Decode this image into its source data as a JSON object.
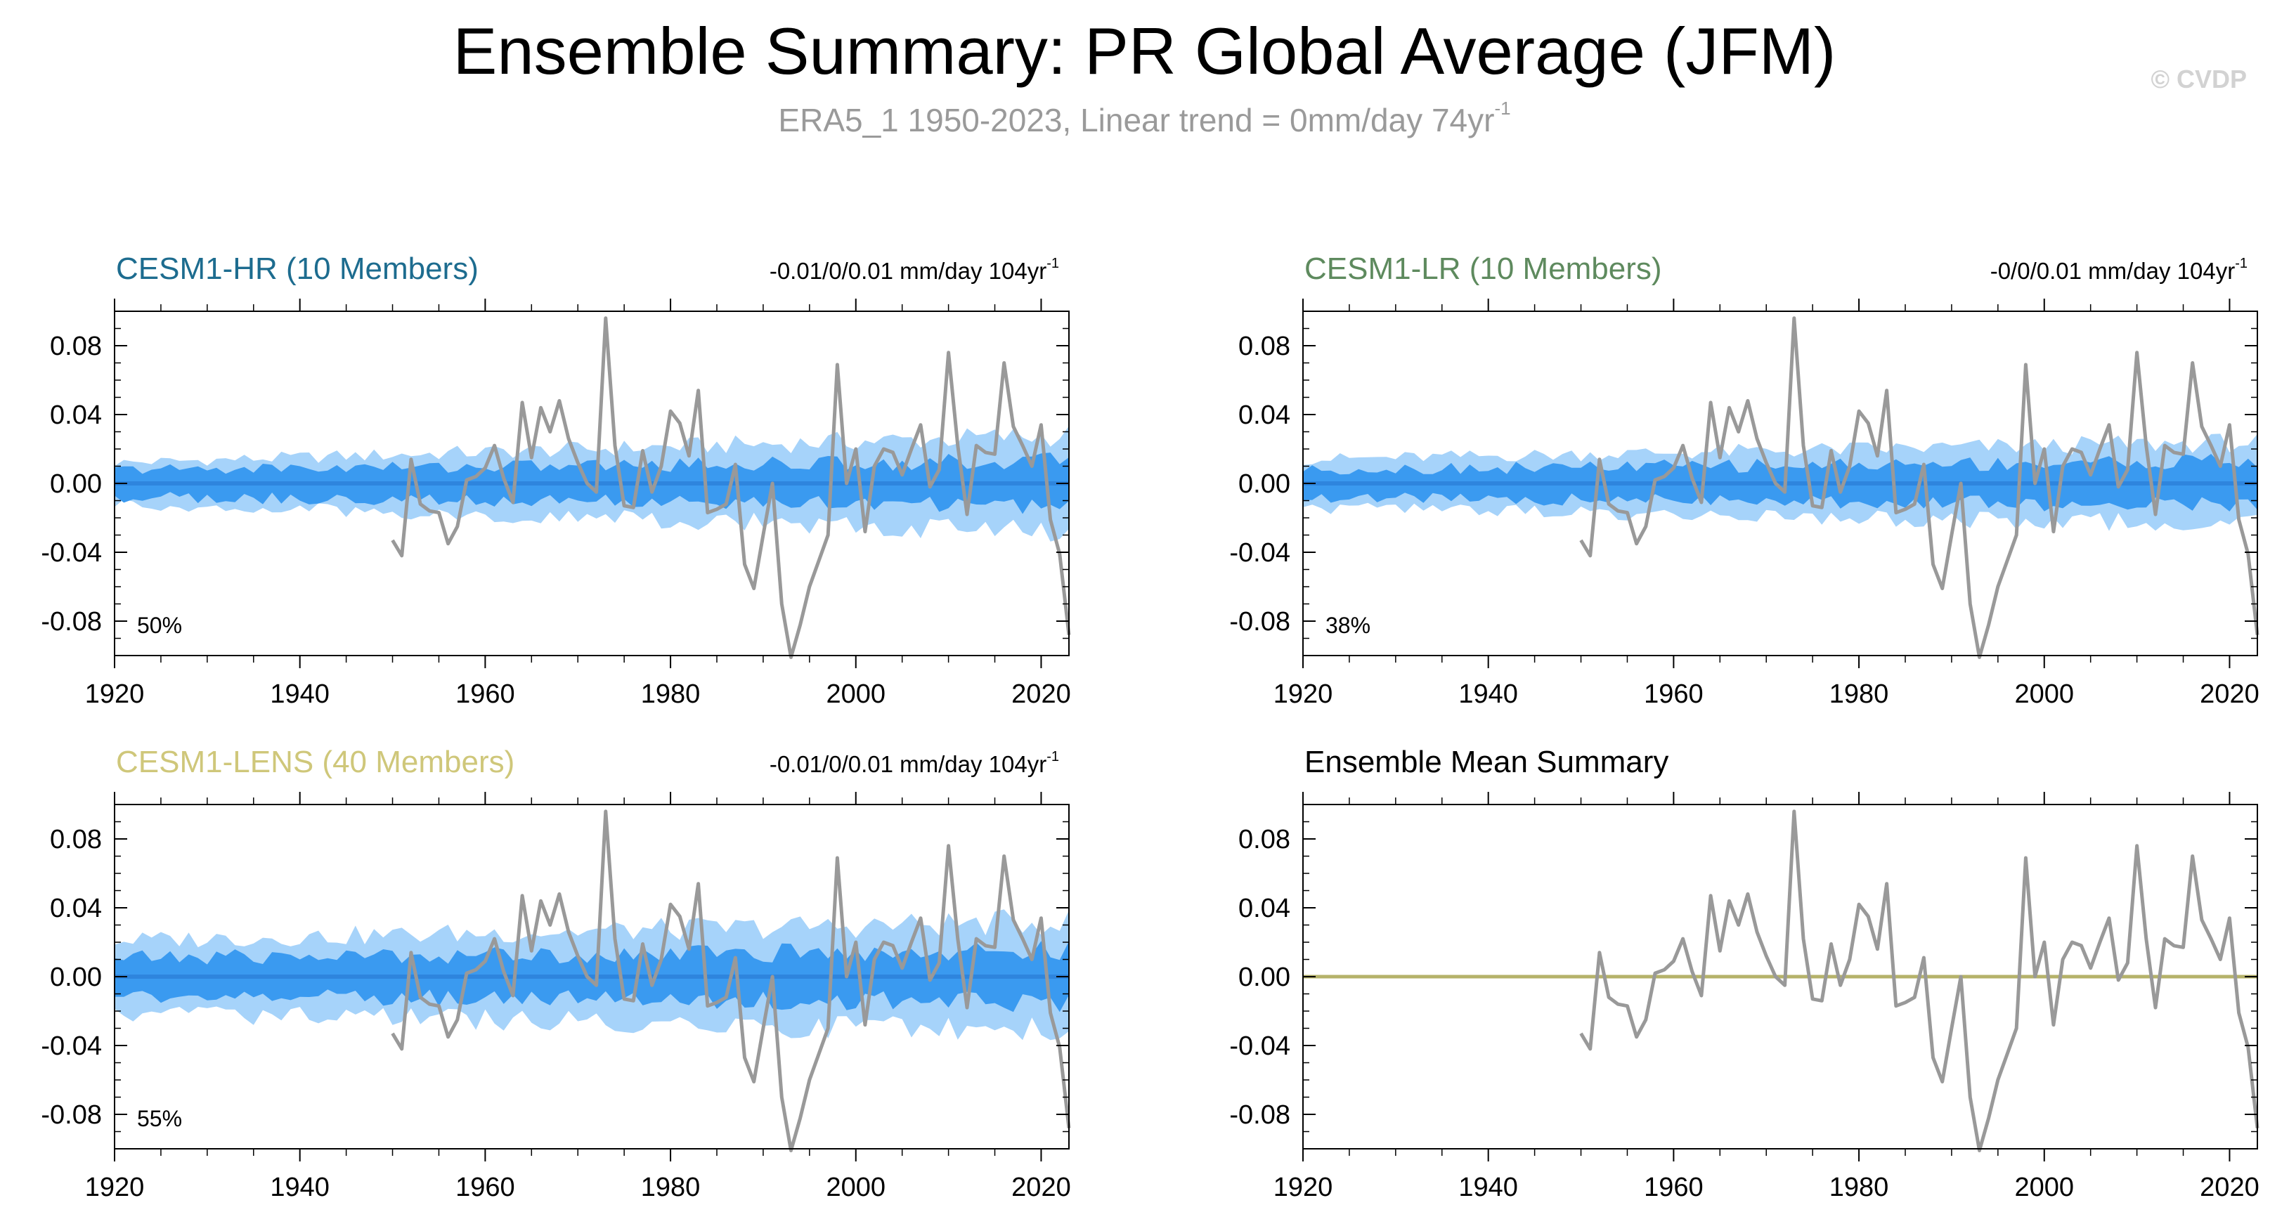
{
  "header": {
    "title": "Ensemble Summary: PR Global Average (JFM)",
    "subtitle": "ERA5_1 1950-2023, Linear trend = 0mm/day 74yr",
    "subtitle_exponent": "-1",
    "credit": "© CVDP"
  },
  "colors": {
    "band_outer": "#a6d3fa",
    "band_inner": "#3a9af0",
    "ensemble_mean_line": "#2e85de",
    "observations": "#999999",
    "mean_summary_line": "#b5b26a",
    "subtitle": "#9a9a9a"
  },
  "chart_data": [
    {
      "type": "line",
      "title": "CESM1-HR (10 Members)",
      "title_color": "#1d6c8f",
      "trend_text": "-0.01/0/0.01 mm/day 104yr",
      "trend_exponent": "-1",
      "percent_label": "50%",
      "xlim": [
        1920,
        2023
      ],
      "ylim": [
        -0.1,
        0.1
      ],
      "xticks": [
        1920,
        1940,
        1960,
        1980,
        2000,
        2020
      ],
      "yticks": [
        -0.08,
        -0.04,
        0.0,
        0.04,
        0.08
      ],
      "ytick_labels": [
        "-0.08",
        "-0.04",
        "0.00",
        "0.04",
        "0.08"
      ],
      "xtick_labels": [
        "1920",
        "1940",
        "1960",
        "1980",
        "2000",
        "2020"
      ],
      "ensemble_years": [
        1920,
        2023
      ],
      "ensemble_mean": 0.0,
      "outer_spread_start": 0.012,
      "outer_spread_end": 0.028,
      "inner_spread_start": 0.008,
      "inner_spread_end": 0.013,
      "series": [
        {
          "name": "ERA5_1",
          "x_start": 1950,
          "values": [
            -0.033,
            -0.042,
            0.014,
            -0.012,
            -0.016,
            -0.017,
            -0.035,
            -0.025,
            0.002,
            0.004,
            0.009,
            0.022,
            0.003,
            -0.011,
            0.047,
            0.015,
            0.044,
            0.03,
            0.048,
            0.026,
            0.012,
            0.0,
            -0.005,
            0.096,
            0.022,
            -0.013,
            -0.014,
            0.019,
            -0.005,
            0.01,
            0.042,
            0.035,
            0.016,
            0.054,
            -0.017,
            -0.015,
            -0.012,
            0.011,
            -0.047,
            -0.061,
            -0.03,
            0.0,
            -0.07,
            -0.101,
            -0.082,
            -0.06,
            -0.045,
            -0.03,
            0.069,
            0.0,
            0.02,
            -0.028,
            0.01,
            0.02,
            0.018,
            0.005,
            0.02,
            0.034,
            -0.002,
            0.008,
            0.076,
            0.022,
            -0.018,
            0.022,
            0.018,
            0.017,
            0.07,
            0.033,
            0.022,
            0.01,
            0.034,
            -0.021,
            -0.041,
            -0.088
          ]
        }
      ]
    },
    {
      "type": "line",
      "title": "CESM1-LR (10 Members)",
      "title_color": "#5e8a5e",
      "trend_text": "-0/0/0.01 mm/day 104yr",
      "trend_exponent": "-1",
      "percent_label": "38%",
      "xlim": [
        1920,
        2023
      ],
      "ylim": [
        -0.1,
        0.1
      ],
      "xticks": [
        1920,
        1940,
        1960,
        1980,
        2000,
        2020
      ],
      "yticks": [
        -0.08,
        -0.04,
        0.0,
        0.04,
        0.08
      ],
      "ytick_labels": [
        "-0.08",
        "-0.04",
        "0.00",
        "0.04",
        "0.08"
      ],
      "xtick_labels": [
        "1920",
        "1940",
        "1960",
        "1980",
        "2000",
        "2020"
      ],
      "ensemble_years": [
        1920,
        2023
      ],
      "ensemble_mean": 0.0,
      "outer_spread_start": 0.014,
      "outer_spread_end": 0.024,
      "inner_spread_start": 0.008,
      "inner_spread_end": 0.013,
      "series": [
        {
          "name": "ERA5_1",
          "x_start": 1950,
          "values": [
            -0.033,
            -0.042,
            0.014,
            -0.012,
            -0.016,
            -0.017,
            -0.035,
            -0.025,
            0.002,
            0.004,
            0.009,
            0.022,
            0.003,
            -0.011,
            0.047,
            0.015,
            0.044,
            0.03,
            0.048,
            0.026,
            0.012,
            0.0,
            -0.005,
            0.096,
            0.022,
            -0.013,
            -0.014,
            0.019,
            -0.005,
            0.01,
            0.042,
            0.035,
            0.016,
            0.054,
            -0.017,
            -0.015,
            -0.012,
            0.011,
            -0.047,
            -0.061,
            -0.03,
            0.0,
            -0.07,
            -0.101,
            -0.082,
            -0.06,
            -0.045,
            -0.03,
            0.069,
            0.0,
            0.02,
            -0.028,
            0.01,
            0.02,
            0.018,
            0.005,
            0.02,
            0.034,
            -0.002,
            0.008,
            0.076,
            0.022,
            -0.018,
            0.022,
            0.018,
            0.017,
            0.07,
            0.033,
            0.022,
            0.01,
            0.034,
            -0.021,
            -0.041,
            -0.088
          ]
        }
      ]
    },
    {
      "type": "line",
      "title": "CESM1-LENS (40 Members)",
      "title_color": "#cfc77a",
      "trend_text": "-0.01/0/0.01 mm/day 104yr",
      "trend_exponent": "-1",
      "percent_label": "55%",
      "xlim": [
        1920,
        2023
      ],
      "ylim": [
        -0.1,
        0.1
      ],
      "xticks": [
        1920,
        1940,
        1960,
        1980,
        2000,
        2020
      ],
      "yticks": [
        -0.08,
        -0.04,
        0.0,
        0.04,
        0.08
      ],
      "ytick_labels": [
        "-0.08",
        "-0.04",
        "0.00",
        "0.04",
        "0.08"
      ],
      "xtick_labels": [
        "1920",
        "1940",
        "1960",
        "1980",
        "2000",
        "2020"
      ],
      "ensemble_years": [
        1920,
        2023
      ],
      "ensemble_mean": 0.0,
      "outer_spread_start": 0.021,
      "outer_spread_end": 0.032,
      "inner_spread_start": 0.011,
      "inner_spread_end": 0.015,
      "series": [
        {
          "name": "ERA5_1",
          "x_start": 1950,
          "values": [
            -0.033,
            -0.042,
            0.014,
            -0.012,
            -0.016,
            -0.017,
            -0.035,
            -0.025,
            0.002,
            0.004,
            0.009,
            0.022,
            0.003,
            -0.011,
            0.047,
            0.015,
            0.044,
            0.03,
            0.048,
            0.026,
            0.012,
            0.0,
            -0.005,
            0.096,
            0.022,
            -0.013,
            -0.014,
            0.019,
            -0.005,
            0.01,
            0.042,
            0.035,
            0.016,
            0.054,
            -0.017,
            -0.015,
            -0.012,
            0.011,
            -0.047,
            -0.061,
            -0.03,
            0.0,
            -0.07,
            -0.101,
            -0.082,
            -0.06,
            -0.045,
            -0.03,
            0.069,
            0.0,
            0.02,
            -0.028,
            0.01,
            0.02,
            0.018,
            0.005,
            0.02,
            0.034,
            -0.002,
            0.008,
            0.076,
            0.022,
            -0.018,
            0.022,
            0.018,
            0.017,
            0.07,
            0.033,
            0.022,
            0.01,
            0.034,
            -0.021,
            -0.041,
            -0.088
          ]
        }
      ]
    },
    {
      "type": "line",
      "title": "Ensemble Mean Summary",
      "title_color": "#000000",
      "xlim": [
        1920,
        2023
      ],
      "ylim": [
        -0.1,
        0.1
      ],
      "xticks": [
        1920,
        1940,
        1960,
        1980,
        2000,
        2020
      ],
      "yticks": [
        -0.08,
        -0.04,
        0.0,
        0.04,
        0.08
      ],
      "ytick_labels": [
        "-0.08",
        "-0.04",
        "0.00",
        "0.04",
        "0.08"
      ],
      "xtick_labels": [
        "1920",
        "1940",
        "1960",
        "1980",
        "2000",
        "2020"
      ],
      "mean_line_years": [
        1920,
        2023
      ],
      "mean_line_value": 0.0,
      "series": [
        {
          "name": "ERA5_1",
          "x_start": 1950,
          "values": [
            -0.033,
            -0.042,
            0.014,
            -0.012,
            -0.016,
            -0.017,
            -0.035,
            -0.025,
            0.002,
            0.004,
            0.009,
            0.022,
            0.003,
            -0.011,
            0.047,
            0.015,
            0.044,
            0.03,
            0.048,
            0.026,
            0.012,
            0.0,
            -0.005,
            0.096,
            0.022,
            -0.013,
            -0.014,
            0.019,
            -0.005,
            0.01,
            0.042,
            0.035,
            0.016,
            0.054,
            -0.017,
            -0.015,
            -0.012,
            0.011,
            -0.047,
            -0.061,
            -0.03,
            0.0,
            -0.07,
            -0.101,
            -0.082,
            -0.06,
            -0.045,
            -0.03,
            0.069,
            0.0,
            0.02,
            -0.028,
            0.01,
            0.02,
            0.018,
            0.005,
            0.02,
            0.034,
            -0.002,
            0.008,
            0.076,
            0.022,
            -0.018,
            0.022,
            0.018,
            0.017,
            0.07,
            0.033,
            0.022,
            0.01,
            0.034,
            -0.021,
            -0.041,
            -0.088
          ]
        }
      ]
    }
  ]
}
